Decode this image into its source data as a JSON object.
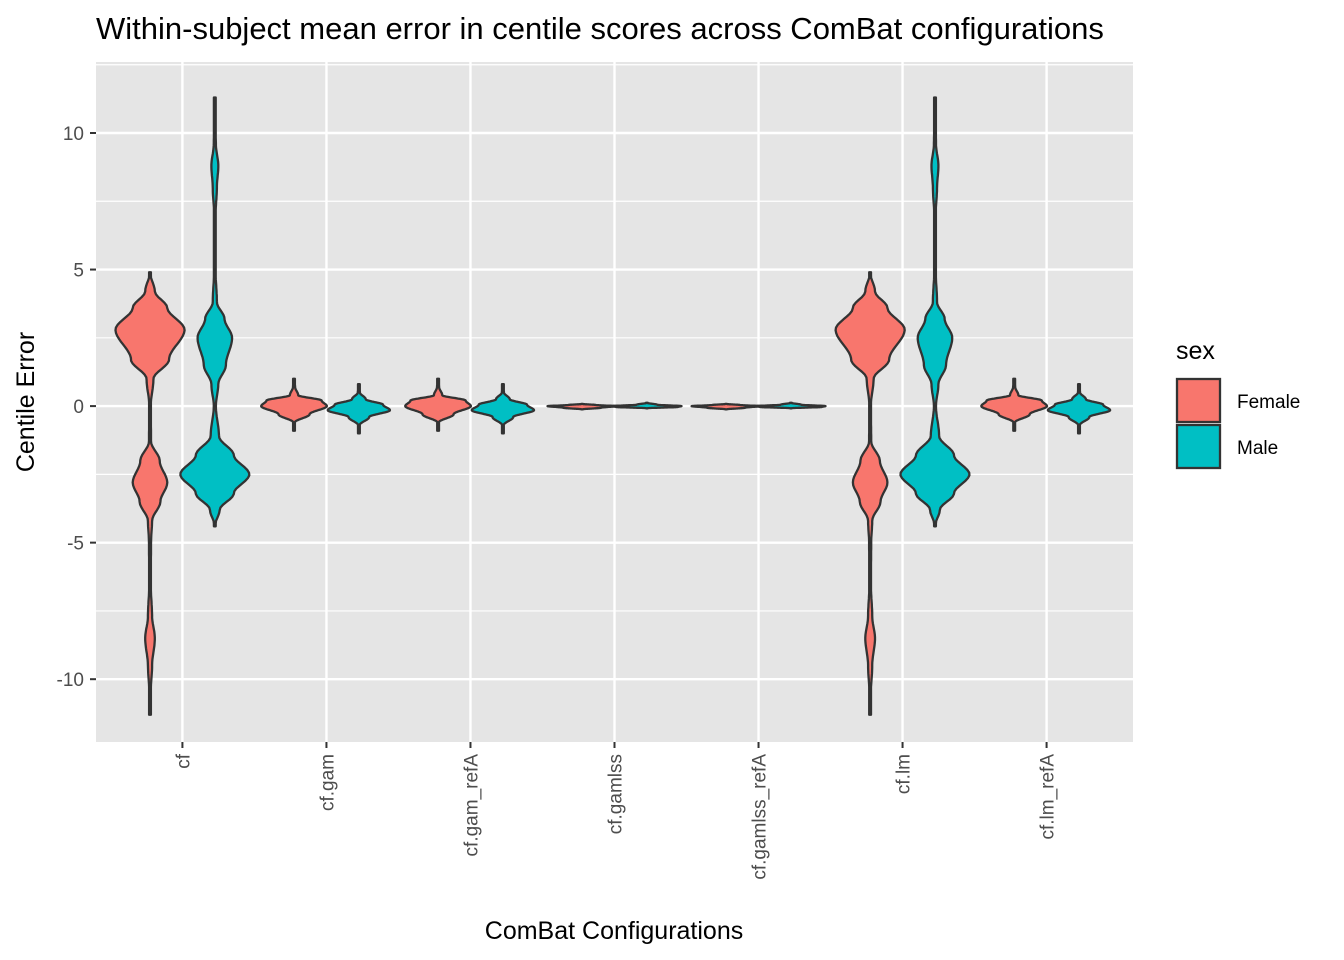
{
  "chart_data": {
    "type": "violin",
    "title": "Within-subject mean error in centile scores across ComBat configurations",
    "xlabel": "ComBat Configurations",
    "ylabel": "Centile Error",
    "ylim": [
      -12.3,
      12.6
    ],
    "yticks": [
      10,
      5,
      0,
      -5,
      -10
    ],
    "ytick_labels": [
      "10",
      "5",
      "0",
      "-5",
      "-10"
    ],
    "grid": true,
    "legend": {
      "title": "sex",
      "position": "right"
    },
    "categories": [
      "cf",
      "cf.gam",
      "cf.gam_refA",
      "cf.gamlss",
      "cf.gamlss_refA",
      "cf.lm",
      "cf.lm_refA"
    ],
    "series": [
      {
        "name": "Female",
        "color": "#F8766D",
        "violins": [
          {
            "range": [
              -11.3,
              4.9
            ],
            "density": [
              [
                -11.3,
                0
              ],
              [
                -10.5,
                0.02
              ],
              [
                -9.5,
                0.06
              ],
              [
                -8.5,
                0.14
              ],
              [
                -7.7,
                0.06
              ],
              [
                -6.5,
                0.02
              ],
              [
                -5,
                0.03
              ],
              [
                -4.2,
                0.06
              ],
              [
                -3.5,
                0.3
              ],
              [
                -2.8,
                0.5
              ],
              [
                -2,
                0.28
              ],
              [
                -1.3,
                0.03
              ],
              [
                0,
                0.02
              ],
              [
                1,
                0.1
              ],
              [
                1.7,
                0.55
              ],
              [
                2.8,
                1.0
              ],
              [
                3.6,
                0.5
              ],
              [
                4.2,
                0.14
              ],
              [
                4.9,
                0
              ]
            ]
          },
          {
            "range": [
              -0.9,
              1.0
            ],
            "density": [
              [
                -0.9,
                0
              ],
              [
                -0.6,
                0.02
              ],
              [
                -0.3,
                0.45
              ],
              [
                0,
                0.95
              ],
              [
                0.2,
                0.8
              ],
              [
                0.4,
                0.12
              ],
              [
                0.7,
                0.03
              ],
              [
                1.0,
                0
              ]
            ]
          },
          {
            "range": [
              -0.9,
              1.0
            ],
            "density": [
              [
                -0.9,
                0
              ],
              [
                -0.6,
                0.02
              ],
              [
                -0.3,
                0.45
              ],
              [
                0,
                0.95
              ],
              [
                0.2,
                0.8
              ],
              [
                0.4,
                0.12
              ],
              [
                0.7,
                0.03
              ],
              [
                1.0,
                0
              ]
            ]
          },
          {
            "range": [
              -0.12,
              0.08
            ],
            "density": [
              [
                -0.12,
                0
              ],
              [
                -0.06,
                0.55
              ],
              [
                0,
                1.0
              ],
              [
                0.04,
                0.4
              ],
              [
                0.08,
                0
              ]
            ]
          },
          {
            "range": [
              -0.12,
              0.08
            ],
            "density": [
              [
                -0.12,
                0
              ],
              [
                -0.06,
                0.55
              ],
              [
                0,
                1.0
              ],
              [
                0.04,
                0.4
              ],
              [
                0.08,
                0
              ]
            ]
          },
          {
            "range": [
              -11.3,
              4.9
            ],
            "density": [
              [
                -11.3,
                0
              ],
              [
                -10.5,
                0.02
              ],
              [
                -9.5,
                0.06
              ],
              [
                -8.5,
                0.14
              ],
              [
                -7.7,
                0.06
              ],
              [
                -6.5,
                0.02
              ],
              [
                -5,
                0.03
              ],
              [
                -4.2,
                0.06
              ],
              [
                -3.5,
                0.3
              ],
              [
                -2.8,
                0.5
              ],
              [
                -2,
                0.28
              ],
              [
                -1.3,
                0.03
              ],
              [
                0,
                0.02
              ],
              [
                1,
                0.1
              ],
              [
                1.7,
                0.55
              ],
              [
                2.8,
                1.0
              ],
              [
                3.6,
                0.5
              ],
              [
                4.2,
                0.14
              ],
              [
                4.9,
                0
              ]
            ]
          },
          {
            "range": [
              -0.9,
              1.0
            ],
            "density": [
              [
                -0.9,
                0
              ],
              [
                -0.6,
                0.02
              ],
              [
                -0.3,
                0.45
              ],
              [
                0,
                0.95
              ],
              [
                0.2,
                0.8
              ],
              [
                0.4,
                0.12
              ],
              [
                0.7,
                0.03
              ],
              [
                1.0,
                0
              ]
            ]
          }
        ]
      },
      {
        "name": "Male",
        "color": "#00BFC4",
        "violins": [
          {
            "range": [
              -4.4,
              11.3
            ],
            "density": [
              [
                -4.4,
                0
              ],
              [
                -3.8,
                0.14
              ],
              [
                -3.2,
                0.55
              ],
              [
                -2.5,
                1.0
              ],
              [
                -1.8,
                0.55
              ],
              [
                -1.1,
                0.12
              ],
              [
                0,
                0.03
              ],
              [
                0.8,
                0.1
              ],
              [
                1.5,
                0.32
              ],
              [
                2.5,
                0.5
              ],
              [
                3.2,
                0.28
              ],
              [
                3.8,
                0.06
              ],
              [
                5,
                0.02
              ],
              [
                7,
                0.02
              ],
              [
                8,
                0.06
              ],
              [
                8.8,
                0.1
              ],
              [
                9.6,
                0.03
              ],
              [
                10.5,
                0.01
              ],
              [
                11.3,
                0
              ]
            ]
          },
          {
            "range": [
              -1.0,
              0.8
            ],
            "density": [
              [
                -1.0,
                0
              ],
              [
                -0.7,
                0.02
              ],
              [
                -0.4,
                0.3
              ],
              [
                -0.15,
                0.9
              ],
              [
                0.05,
                0.7
              ],
              [
                0.25,
                0.2
              ],
              [
                0.5,
                0.03
              ],
              [
                0.8,
                0
              ]
            ]
          },
          {
            "range": [
              -1.0,
              0.8
            ],
            "density": [
              [
                -1.0,
                0
              ],
              [
                -0.7,
                0.02
              ],
              [
                -0.4,
                0.3
              ],
              [
                -0.15,
                0.9
              ],
              [
                0.05,
                0.7
              ],
              [
                0.25,
                0.2
              ],
              [
                0.5,
                0.03
              ],
              [
                0.8,
                0
              ]
            ]
          },
          {
            "range": [
              -0.08,
              0.12
            ],
            "density": [
              [
                -0.08,
                0
              ],
              [
                -0.03,
                0.9
              ],
              [
                0,
                1.0
              ],
              [
                0.05,
                0.3
              ],
              [
                0.12,
                0
              ]
            ]
          },
          {
            "range": [
              -0.08,
              0.12
            ],
            "density": [
              [
                -0.08,
                0
              ],
              [
                -0.03,
                0.9
              ],
              [
                0,
                1.0
              ],
              [
                0.05,
                0.3
              ],
              [
                0.12,
                0
              ]
            ]
          },
          {
            "range": [
              -4.4,
              11.3
            ],
            "density": [
              [
                -4.4,
                0
              ],
              [
                -3.8,
                0.14
              ],
              [
                -3.2,
                0.55
              ],
              [
                -2.5,
                1.0
              ],
              [
                -1.8,
                0.55
              ],
              [
                -1.1,
                0.12
              ],
              [
                0,
                0.03
              ],
              [
                0.8,
                0.1
              ],
              [
                1.5,
                0.32
              ],
              [
                2.5,
                0.5
              ],
              [
                3.2,
                0.28
              ],
              [
                3.8,
                0.06
              ],
              [
                5,
                0.02
              ],
              [
                7,
                0.02
              ],
              [
                8,
                0.06
              ],
              [
                8.8,
                0.1
              ],
              [
                9.6,
                0.03
              ],
              [
                10.5,
                0.01
              ],
              [
                11.3,
                0
              ]
            ]
          },
          {
            "range": [
              -1.0,
              0.8
            ],
            "density": [
              [
                -1.0,
                0
              ],
              [
                -0.7,
                0.02
              ],
              [
                -0.4,
                0.3
              ],
              [
                -0.15,
                0.9
              ],
              [
                0.05,
                0.7
              ],
              [
                0.25,
                0.2
              ],
              [
                0.5,
                0.03
              ],
              [
                0.8,
                0
              ]
            ]
          }
        ]
      }
    ]
  },
  "colors": {
    "panel_background": "#E5E5E5",
    "grid_line": "#FFFFFF",
    "violin_outline": "#333333",
    "female": "#F8766D",
    "male": "#00BFC4"
  }
}
